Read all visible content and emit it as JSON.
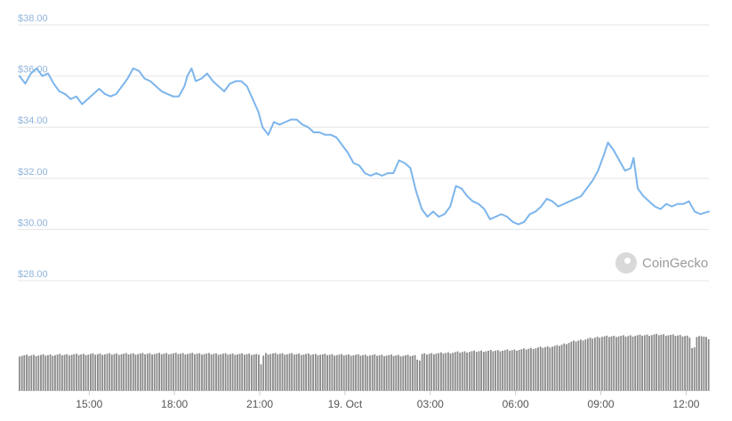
{
  "chart_data": {
    "type": "line",
    "y_ticks": [
      "$38.00",
      "$36.00",
      "$34.00",
      "$32.00",
      "$30.00",
      "$28.00"
    ],
    "y_tick_values": [
      38,
      36,
      34,
      32,
      30,
      28
    ],
    "ylim": [
      28,
      38
    ],
    "x_ticks": [
      "15:00",
      "18:00",
      "21:00",
      "19. Oct",
      "03:00",
      "06:00",
      "09:00",
      "12:00"
    ],
    "x_tick_hours": [
      15,
      18,
      21,
      24,
      27,
      30,
      33,
      36
    ],
    "xlim": [
      12.55,
      36.8
    ],
    "grid": true,
    "series": [
      {
        "type": "line",
        "color": "#7cb5ec",
        "points": [
          [
            12.55,
            36.0
          ],
          [
            12.75,
            35.7
          ],
          [
            12.95,
            36.1
          ],
          [
            13.15,
            36.3
          ],
          [
            13.35,
            36.0
          ],
          [
            13.55,
            36.1
          ],
          [
            13.75,
            35.7
          ],
          [
            13.95,
            35.4
          ],
          [
            14.15,
            35.3
          ],
          [
            14.35,
            35.1
          ],
          [
            14.55,
            35.2
          ],
          [
            14.75,
            34.9
          ],
          [
            14.95,
            35.1
          ],
          [
            15.15,
            35.3
          ],
          [
            15.35,
            35.5
          ],
          [
            15.55,
            35.3
          ],
          [
            15.75,
            35.2
          ],
          [
            15.95,
            35.3
          ],
          [
            16.15,
            35.6
          ],
          [
            16.35,
            35.9
          ],
          [
            16.55,
            36.3
          ],
          [
            16.75,
            36.2
          ],
          [
            16.95,
            35.9
          ],
          [
            17.15,
            35.8
          ],
          [
            17.35,
            35.6
          ],
          [
            17.55,
            35.4
          ],
          [
            17.75,
            35.3
          ],
          [
            17.95,
            35.2
          ],
          [
            18.15,
            35.2
          ],
          [
            18.35,
            35.6
          ],
          [
            18.45,
            36.0
          ],
          [
            18.6,
            36.3
          ],
          [
            18.75,
            35.8
          ],
          [
            18.95,
            35.9
          ],
          [
            19.15,
            36.1
          ],
          [
            19.35,
            35.8
          ],
          [
            19.55,
            35.6
          ],
          [
            19.75,
            35.4
          ],
          [
            19.95,
            35.7
          ],
          [
            20.15,
            35.8
          ],
          [
            20.35,
            35.8
          ],
          [
            20.55,
            35.6
          ],
          [
            20.75,
            35.1
          ],
          [
            20.95,
            34.6
          ],
          [
            21.1,
            34.0
          ],
          [
            21.3,
            33.7
          ],
          [
            21.5,
            34.2
          ],
          [
            21.7,
            34.1
          ],
          [
            21.9,
            34.2
          ],
          [
            22.1,
            34.3
          ],
          [
            22.3,
            34.3
          ],
          [
            22.5,
            34.1
          ],
          [
            22.7,
            34.0
          ],
          [
            22.9,
            33.8
          ],
          [
            23.1,
            33.8
          ],
          [
            23.3,
            33.7
          ],
          [
            23.5,
            33.7
          ],
          [
            23.7,
            33.6
          ],
          [
            23.9,
            33.3
          ],
          [
            24.1,
            33.0
          ],
          [
            24.3,
            32.6
          ],
          [
            24.5,
            32.5
          ],
          [
            24.7,
            32.2
          ],
          [
            24.9,
            32.1
          ],
          [
            25.1,
            32.2
          ],
          [
            25.3,
            32.1
          ],
          [
            25.5,
            32.2
          ],
          [
            25.7,
            32.2
          ],
          [
            25.9,
            32.7
          ],
          [
            26.1,
            32.6
          ],
          [
            26.3,
            32.4
          ],
          [
            26.5,
            31.5
          ],
          [
            26.7,
            30.8
          ],
          [
            26.9,
            30.5
          ],
          [
            27.1,
            30.7
          ],
          [
            27.3,
            30.5
          ],
          [
            27.5,
            30.6
          ],
          [
            27.7,
            30.9
          ],
          [
            27.9,
            31.7
          ],
          [
            28.1,
            31.6
          ],
          [
            28.3,
            31.3
          ],
          [
            28.5,
            31.1
          ],
          [
            28.7,
            31.0
          ],
          [
            28.9,
            30.8
          ],
          [
            29.1,
            30.4
          ],
          [
            29.3,
            30.5
          ],
          [
            29.5,
            30.6
          ],
          [
            29.7,
            30.5
          ],
          [
            29.9,
            30.3
          ],
          [
            30.1,
            30.2
          ],
          [
            30.3,
            30.3
          ],
          [
            30.5,
            30.6
          ],
          [
            30.7,
            30.7
          ],
          [
            30.9,
            30.9
          ],
          [
            31.1,
            31.2
          ],
          [
            31.3,
            31.1
          ],
          [
            31.5,
            30.9
          ],
          [
            31.7,
            31.0
          ],
          [
            31.9,
            31.1
          ],
          [
            32.1,
            31.2
          ],
          [
            32.3,
            31.3
          ],
          [
            32.5,
            31.6
          ],
          [
            32.7,
            31.9
          ],
          [
            32.9,
            32.3
          ],
          [
            33.1,
            32.9
          ],
          [
            33.25,
            33.4
          ],
          [
            33.45,
            33.1
          ],
          [
            33.65,
            32.7
          ],
          [
            33.85,
            32.3
          ],
          [
            34.05,
            32.4
          ],
          [
            34.15,
            32.8
          ],
          [
            34.3,
            31.6
          ],
          [
            34.5,
            31.3
          ],
          [
            34.7,
            31.1
          ],
          [
            34.9,
            30.9
          ],
          [
            35.1,
            30.8
          ],
          [
            35.3,
            31.0
          ],
          [
            35.5,
            30.9
          ],
          [
            35.7,
            31.0
          ],
          [
            35.9,
            31.0
          ],
          [
            36.1,
            31.1
          ],
          [
            36.3,
            30.7
          ],
          [
            36.5,
            30.6
          ],
          [
            36.8,
            30.7
          ]
        ]
      },
      {
        "type": "bar",
        "color": "#8a8a8a",
        "volume_relative": [
          [
            12.55,
            0.5
          ],
          [
            15.0,
            0.52
          ],
          [
            18.0,
            0.53
          ],
          [
            20.95,
            0.52
          ],
          [
            21.05,
            0.38
          ],
          [
            21.15,
            0.53
          ],
          [
            24.0,
            0.51
          ],
          [
            26.5,
            0.5
          ],
          [
            26.6,
            0.4
          ],
          [
            26.7,
            0.52
          ],
          [
            28.5,
            0.56
          ],
          [
            30.0,
            0.58
          ],
          [
            31.5,
            0.64
          ],
          [
            32.0,
            0.7
          ],
          [
            33.0,
            0.77
          ],
          [
            34.0,
            0.78
          ],
          [
            35.0,
            0.8
          ],
          [
            36.1,
            0.78
          ],
          [
            36.25,
            0.55
          ],
          [
            36.4,
            0.8
          ],
          [
            36.8,
            0.74
          ]
        ]
      }
    ]
  },
  "watermark": {
    "label": "CoinGecko",
    "icon": "gecko-logo-icon"
  }
}
